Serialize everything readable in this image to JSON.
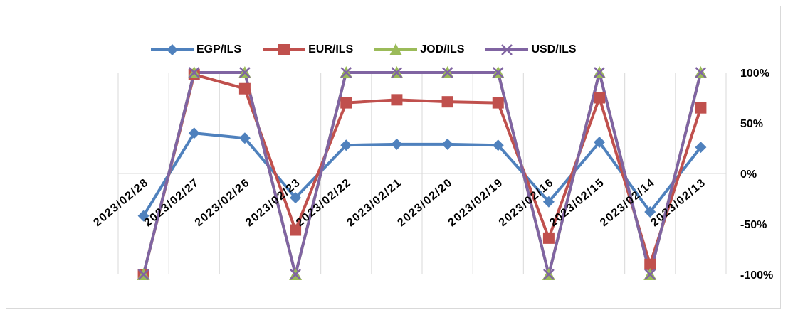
{
  "chart_data": {
    "type": "line",
    "categories": [
      "2023/02/28",
      "2023/02/27",
      "2023/02/26",
      "2023/02/23",
      "2023/02/22",
      "2023/02/21",
      "2023/02/20",
      "2023/02/19",
      "2023/02/16",
      "2023/02/15",
      "2023/02/14",
      "2023/02/13"
    ],
    "y_ticks": [
      "100%",
      "50%",
      "0%",
      "-50%",
      "-100%"
    ],
    "ylim": [
      -100,
      100
    ],
    "grid": "vertical",
    "legend_position": "top",
    "series": [
      {
        "name": "EGP/ILS",
        "color": "#4f81bd",
        "marker": "diamond",
        "values": [
          -42,
          40,
          35,
          -24,
          28,
          29,
          29,
          28,
          -28,
          31,
          -38,
          26
        ]
      },
      {
        "name": "EUR/ILS",
        "color": "#c0504d",
        "marker": "square",
        "values": [
          -100,
          98,
          84,
          -56,
          70,
          73,
          71,
          70,
          -64,
          75,
          -90,
          65
        ]
      },
      {
        "name": "JOD/ILS",
        "color": "#9bbb59",
        "marker": "triangle",
        "values": [
          -100,
          100,
          100,
          -100,
          100,
          100,
          100,
          100,
          -100,
          100,
          -100,
          100
        ]
      },
      {
        "name": "USD/ILS",
        "color": "#8064a2",
        "marker": "x",
        "values": [
          -100,
          100,
          100,
          -100,
          100,
          100,
          100,
          100,
          -100,
          100,
          -100,
          100
        ]
      }
    ]
  }
}
